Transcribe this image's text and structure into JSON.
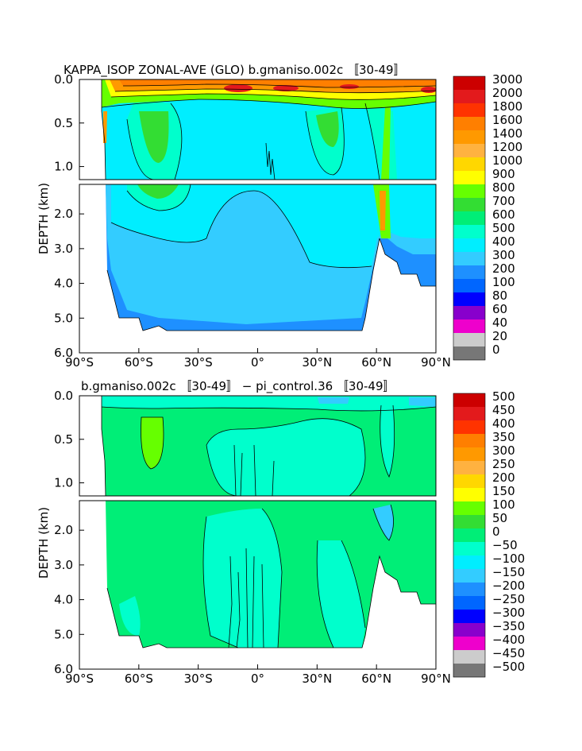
{
  "chart_data": [
    {
      "type": "heatmap",
      "title": "KAPPA_ISOP ZONAL-AVE (GLO) b.gmaniso.002c 〚30-49〛",
      "ylabel": "DEPTH (km)",
      "x_ticks": [
        "90°S",
        "60°S",
        "30°S",
        "0°",
        "30°N",
        "60°N",
        "90°N"
      ],
      "y_ticks_upper": [
        "0.0",
        "0.5",
        "1.0"
      ],
      "y_ticks_lower": [
        "2.0",
        "3.0",
        "4.0",
        "5.0",
        "6.0"
      ],
      "x_range": [
        -90,
        90
      ],
      "depth_range_km": [
        0,
        6
      ],
      "break_depth_km": 1.15,
      "legend": {
        "labels": [
          "3000",
          "2000",
          "1800",
          "1600",
          "1400",
          "1200",
          "1000",
          "900",
          "800",
          "700",
          "600",
          "500",
          "400",
          "300",
          "200",
          "100",
          "80",
          "60",
          "40",
          "20",
          "0"
        ],
        "colors": [
          "#cc0000",
          "#e31a1c",
          "#ff3300",
          "#ff7f00",
          "#ff9900",
          "#ffb240",
          "#ffd700",
          "#ffff00",
          "#66ff00",
          "#33dd33",
          "#00ee77",
          "#00ffcc",
          "#00eeff",
          "#33ccff",
          "#1e90ff",
          "#0066ff",
          "#0000ff",
          "#8800cc",
          "#ee00cc",
          "#cccccc",
          "#777777"
        ]
      }
    },
    {
      "type": "heatmap",
      "title": "b.gmaniso.002c 〚30-49〛 − pi_control.36 〚30-49〛",
      "ylabel": "DEPTH (km)",
      "x_ticks": [
        "90°S",
        "60°S",
        "30°S",
        "0°",
        "30°N",
        "60°N",
        "90°N"
      ],
      "y_ticks_upper": [
        "0.0",
        "0.5",
        "1.0"
      ],
      "y_ticks_lower": [
        "2.0",
        "3.0",
        "4.0",
        "5.0",
        "6.0"
      ],
      "x_range": [
        -90,
        90
      ],
      "depth_range_km": [
        0,
        6
      ],
      "break_depth_km": 1.15,
      "legend": {
        "labels": [
          "500",
          "450",
          "400",
          "350",
          "300",
          "250",
          "200",
          "150",
          "100",
          "50",
          "0",
          "−50",
          "−100",
          "−150",
          "−200",
          "−250",
          "−300",
          "−350",
          "−400",
          "−450",
          "−500"
        ],
        "colors": [
          "#cc0000",
          "#e31a1c",
          "#ff3300",
          "#ff7f00",
          "#ff9900",
          "#ffb240",
          "#ffd700",
          "#ffff00",
          "#66ff00",
          "#33dd33",
          "#00ee77",
          "#00ffcc",
          "#00eeff",
          "#33ccff",
          "#1e90ff",
          "#0066ff",
          "#0000ff",
          "#8800cc",
          "#ee00cc",
          "#cccccc",
          "#777777"
        ]
      }
    }
  ]
}
